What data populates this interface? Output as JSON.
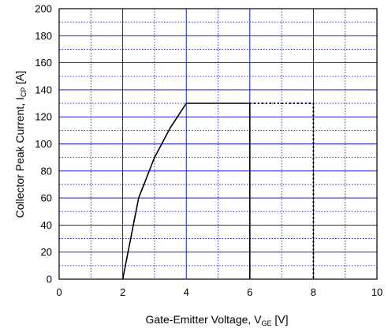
{
  "chart_data": {
    "type": "line",
    "xlabel": {
      "main": "Gate-Emitter Voltage, V",
      "sub": "GE",
      "unit": " [V]"
    },
    "ylabel": {
      "main": "Collector Peak Current, I",
      "sub": "CP",
      "unit": " [A]"
    },
    "xlim": [
      0,
      10
    ],
    "ylim": [
      0,
      200
    ],
    "x_ticks": [
      0,
      2,
      4,
      6,
      8,
      10
    ],
    "y_ticks": [
      0,
      20,
      40,
      60,
      80,
      100,
      120,
      140,
      160,
      180,
      200
    ],
    "x_major_grid": [
      2,
      4,
      6,
      8
    ],
    "x_minor_grid": [
      1,
      3,
      5,
      7,
      9
    ],
    "y_major_grid": [
      20,
      40,
      60,
      80,
      100,
      120,
      140,
      160,
      180
    ],
    "y_minor_grid": [
      10,
      30,
      50,
      70,
      90,
      110,
      130,
      150,
      170,
      190
    ],
    "grid": true,
    "grid_color": "#0000cc",
    "line_color": "#000000",
    "series": [
      {
        "style": "solid",
        "x": [
          2.0,
          2.5,
          3.0,
          3.5,
          4.0,
          6.0,
          6.0
        ],
        "y": [
          0,
          60,
          90,
          112,
          130,
          130,
          0
        ]
      },
      {
        "style": "dashed",
        "x": [
          6.0,
          8.0,
          8.0
        ],
        "y": [
          130,
          130,
          0
        ]
      }
    ]
  }
}
